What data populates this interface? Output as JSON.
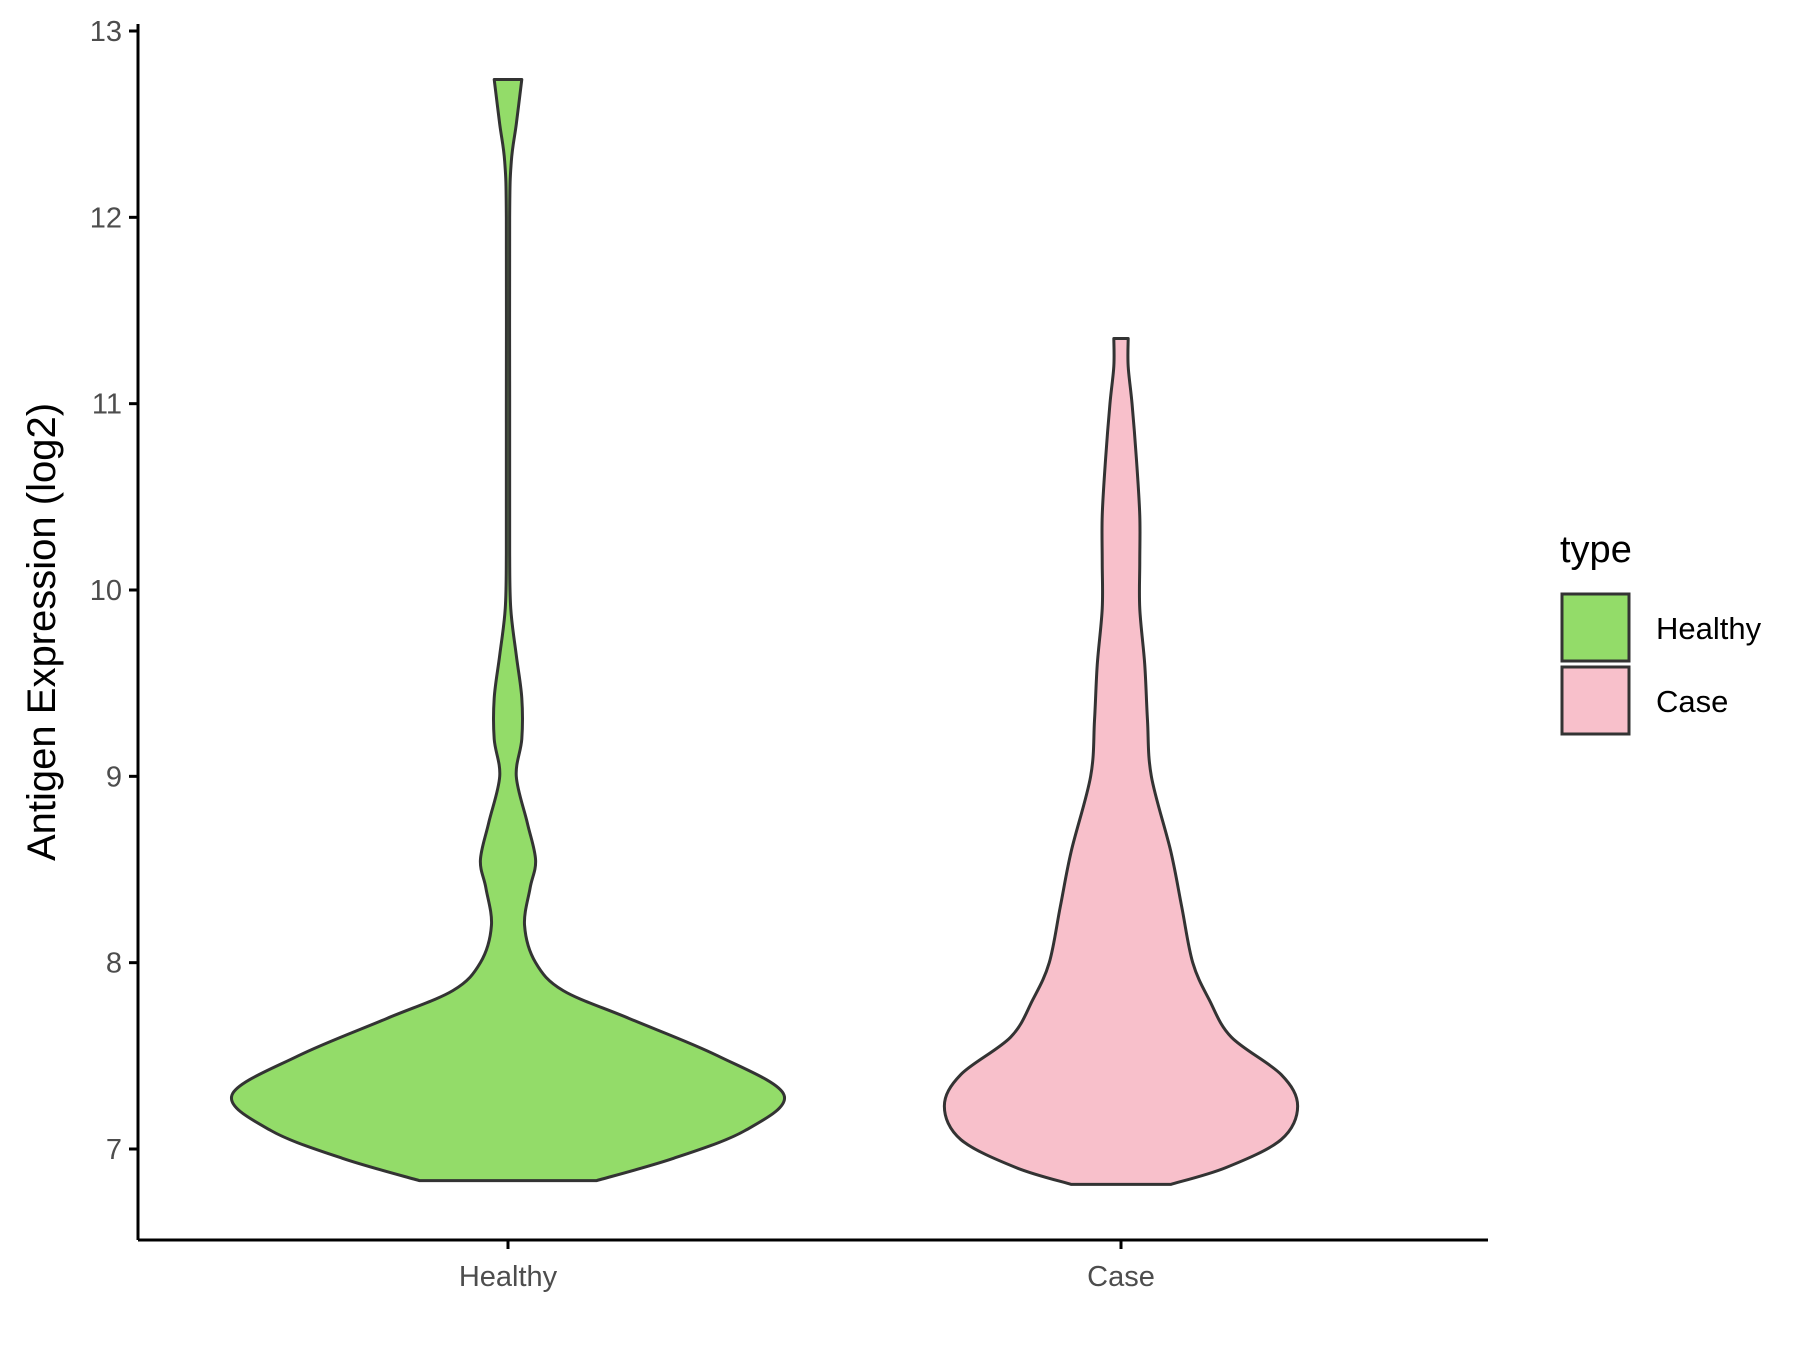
{
  "chart_data": {
    "type": "violin",
    "title": "",
    "xlabel": "",
    "ylabel": "Antigen Expression (log2)",
    "ylim": [
      6.5,
      13.0
    ],
    "yticks": [
      7,
      8,
      9,
      10,
      11,
      12,
      13
    ],
    "categories": [
      "Healthy",
      "Case"
    ],
    "grid": false,
    "legend": {
      "title": "type",
      "placement": "right",
      "entries": [
        "Healthy",
        "Case"
      ]
    },
    "series": [
      {
        "name": "Healthy",
        "color": "#93dc69",
        "min": 6.83,
        "max": 12.74,
        "density": [
          [
            6.83,
            0.16
          ],
          [
            6.95,
            0.3
          ],
          [
            7.1,
            0.43
          ],
          [
            7.29,
            0.5
          ],
          [
            7.5,
            0.38
          ],
          [
            7.7,
            0.22
          ],
          [
            7.85,
            0.1
          ],
          [
            8.0,
            0.05
          ],
          [
            8.2,
            0.03
          ],
          [
            8.4,
            0.04
          ],
          [
            8.55,
            0.05
          ],
          [
            8.75,
            0.035
          ],
          [
            9.0,
            0.015
          ],
          [
            9.2,
            0.025
          ],
          [
            9.42,
            0.025
          ],
          [
            9.65,
            0.015
          ],
          [
            9.9,
            0.005
          ],
          [
            10.2,
            0.003
          ],
          [
            11.0,
            0.003
          ],
          [
            12.0,
            0.003
          ],
          [
            12.3,
            0.006
          ],
          [
            12.5,
            0.015
          ],
          [
            12.74,
            0.025
          ]
        ]
      },
      {
        "name": "Case",
        "color": "#f8c0cb",
        "min": 6.81,
        "max": 11.35,
        "density": [
          [
            6.81,
            0.09
          ],
          [
            6.9,
            0.19
          ],
          [
            7.05,
            0.29
          ],
          [
            7.23,
            0.32
          ],
          [
            7.4,
            0.29
          ],
          [
            7.6,
            0.2
          ],
          [
            7.8,
            0.16
          ],
          [
            8.0,
            0.13
          ],
          [
            8.3,
            0.11
          ],
          [
            8.6,
            0.09
          ],
          [
            9.0,
            0.055
          ],
          [
            9.3,
            0.048
          ],
          [
            9.6,
            0.043
          ],
          [
            9.9,
            0.034
          ],
          [
            10.15,
            0.034
          ],
          [
            10.4,
            0.034
          ],
          [
            10.7,
            0.028
          ],
          [
            11.0,
            0.02
          ],
          [
            11.2,
            0.013
          ],
          [
            11.35,
            0.013
          ]
        ]
      }
    ]
  }
}
